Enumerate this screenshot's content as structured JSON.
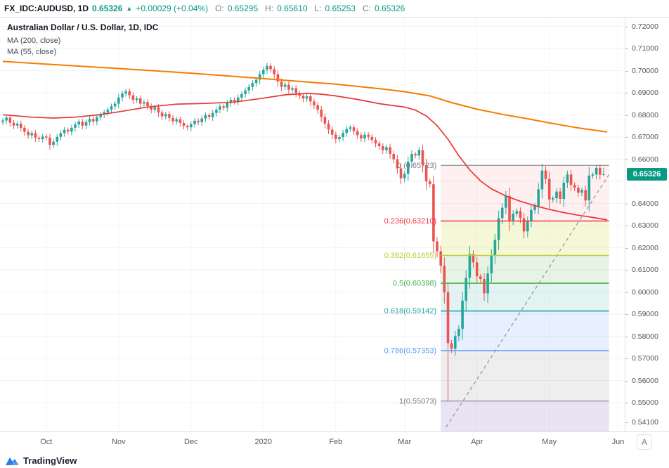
{
  "topbar": {
    "symbol": "FX_IDC:AUDUSD, 1D",
    "last": "0.65326",
    "direction_icon": "▲",
    "change": "+0.00029 (+0.04%)",
    "o_label": "O:",
    "o": "0.65295",
    "h_label": "H:",
    "h": "0.65610",
    "l_label": "L:",
    "l": "0.65253",
    "c_label": "C:",
    "c": "0.65326"
  },
  "legend": {
    "title": "Australian Dollar / U.S. Dollar, 1D, IDC",
    "ma1": "MA (200, close)",
    "ma2": "MA (55, close)"
  },
  "price_badge": "0.65326",
  "corner_button": "A",
  "footer": {
    "brand": "TradingView"
  },
  "colors": {
    "up": "#26a69a",
    "down": "#ef5350",
    "accent_teal": "#089981",
    "brand_blue": "#2a7de1",
    "axis_text": "#51555f"
  },
  "axis": {
    "price_labels": [
      "0.72000",
      "0.71000",
      "0.70000",
      "0.69000",
      "0.68000",
      "0.67000",
      "0.66000",
      "0.64000",
      "0.63000",
      "0.62000",
      "0.61000",
      "0.60000",
      "0.59000",
      "0.58000",
      "0.57000",
      "0.56000",
      "0.55000",
      "0.54100"
    ],
    "month_labels": [
      {
        "text": "Oct",
        "i": 12
      },
      {
        "text": "Nov",
        "i": 32
      },
      {
        "text": "Dec",
        "i": 52
      },
      {
        "text": "2020",
        "i": 72
      },
      {
        "text": "Feb",
        "i": 92
      },
      {
        "text": "Mar",
        "i": 111
      },
      {
        "text": "Apr",
        "i": 131
      },
      {
        "text": "May",
        "i": 151
      },
      {
        "text": "Jun",
        "i": 170
      }
    ]
  },
  "chart_data": {
    "type": "candlestick",
    "title": "Australian Dollar / U.S. Dollar, 1D, IDC",
    "timeframe": "1D",
    "y_axis": {
      "visible_range": [
        0.537,
        0.724
      ],
      "grid": true
    },
    "candle_colors": {
      "up": "#26a69a",
      "down": "#ef5350"
    },
    "candles": {
      "first_open": 0.6768,
      "closes": [
        0.6775,
        0.6788,
        0.6765,
        0.6752,
        0.6761,
        0.6742,
        0.6724,
        0.6708,
        0.6718,
        0.6697,
        0.6691,
        0.6703,
        0.6698,
        0.6665,
        0.6679,
        0.6701,
        0.6718,
        0.6733,
        0.6725,
        0.6742,
        0.6757,
        0.677,
        0.6752,
        0.6768,
        0.6782,
        0.6771,
        0.679,
        0.6801,
        0.6812,
        0.6824,
        0.6839,
        0.6851,
        0.6879,
        0.6897,
        0.6907,
        0.6889,
        0.6868,
        0.6875,
        0.6851,
        0.6858,
        0.684,
        0.6824,
        0.6835,
        0.6811,
        0.6794,
        0.6804,
        0.6787,
        0.6771,
        0.6781,
        0.6764,
        0.6751,
        0.6744,
        0.6759,
        0.6774,
        0.6767,
        0.6784,
        0.6799,
        0.6791,
        0.6809,
        0.6824,
        0.6839,
        0.6833,
        0.6854,
        0.6869,
        0.6861,
        0.6879,
        0.6894,
        0.6911,
        0.6927,
        0.6944,
        0.6959,
        0.6984,
        0.7004,
        0.7022,
        0.7007,
        0.6984,
        0.6951,
        0.6927,
        0.6937,
        0.6914,
        0.6921,
        0.6899,
        0.6887,
        0.6874,
        0.6884,
        0.6861,
        0.6844,
        0.6824,
        0.6791,
        0.6761,
        0.6734,
        0.6711,
        0.6691,
        0.67,
        0.6719,
        0.6737,
        0.6744,
        0.6727,
        0.6709,
        0.6694,
        0.6711,
        0.6701,
        0.6687,
        0.6671,
        0.6659,
        0.6641,
        0.6654,
        0.6624,
        0.66,
        0.6559,
        0.6514,
        0.6534,
        0.6589,
        0.6624,
        0.6617,
        0.6641,
        0.6574,
        0.65,
        0.6487,
        0.6229,
        0.6184,
        0.6119,
        0.5999,
        0.5769,
        0.5744,
        0.5801,
        0.5834,
        0.5961,
        0.6064,
        0.6171,
        0.6134,
        0.6071,
        0.6059,
        0.5994,
        0.6084,
        0.6164,
        0.6236,
        0.6334,
        0.6381,
        0.6434,
        0.6324,
        0.6354,
        0.6366,
        0.6334,
        0.6274,
        0.6321,
        0.6371,
        0.6389,
        0.6464,
        0.6549,
        0.6511,
        0.6418,
        0.6424,
        0.6454,
        0.6421,
        0.6494,
        0.6531,
        0.6484,
        0.6471,
        0.6449,
        0.6461,
        0.6414,
        0.6526,
        0.6531,
        0.6561,
        0.653,
        0.65326
      ],
      "overrides": {
        "73": {
          "h": 0.7035
        },
        "123": {
          "l": 0.55073
        },
        "164": {
          "h": 0.65723
        },
        "166": {
          "o": 0.65295,
          "h": 0.6561,
          "l": 0.65253,
          "c": 0.65326
        }
      }
    },
    "moving_averages": [
      {
        "label": "MA (200, close)",
        "color": "#f57c00",
        "points": [
          [
            0,
            0.7042
          ],
          [
            12,
            0.703
          ],
          [
            32,
            0.701
          ],
          [
            52,
            0.6989
          ],
          [
            72,
            0.6964
          ],
          [
            92,
            0.6939
          ],
          [
            105,
            0.6917
          ],
          [
            111,
            0.6905
          ],
          [
            118,
            0.6886
          ],
          [
            124,
            0.6856
          ],
          [
            131,
            0.6826
          ],
          [
            138,
            0.6803
          ],
          [
            145,
            0.6783
          ],
          [
            151,
            0.6764
          ],
          [
            158,
            0.6744
          ],
          [
            167,
            0.6723
          ]
        ]
      },
      {
        "label": "MA (55, close)",
        "color": "#e53935",
        "points": [
          [
            0,
            0.6801
          ],
          [
            8,
            0.679
          ],
          [
            14,
            0.6786
          ],
          [
            20,
            0.679
          ],
          [
            26,
            0.68
          ],
          [
            32,
            0.6814
          ],
          [
            40,
            0.6836
          ],
          [
            48,
            0.6849
          ],
          [
            56,
            0.6852
          ],
          [
            64,
            0.6858
          ],
          [
            72,
            0.6876
          ],
          [
            78,
            0.6891
          ],
          [
            84,
            0.6897
          ],
          [
            88,
            0.6894
          ],
          [
            92,
            0.6886
          ],
          [
            98,
            0.687
          ],
          [
            104,
            0.6851
          ],
          [
            108,
            0.6842
          ],
          [
            111,
            0.6836
          ],
          [
            114,
            0.6822
          ],
          [
            117,
            0.6796
          ],
          [
            120,
            0.6752
          ],
          [
            123,
            0.669
          ],
          [
            126,
            0.6616
          ],
          [
            129,
            0.6552
          ],
          [
            132,
            0.6502
          ],
          [
            135,
            0.6466
          ],
          [
            139,
            0.6434
          ],
          [
            143,
            0.641
          ],
          [
            147,
            0.639
          ],
          [
            151,
            0.6373
          ],
          [
            155,
            0.6359
          ],
          [
            159,
            0.6347
          ],
          [
            163,
            0.6337
          ],
          [
            167,
            0.6326
          ]
        ]
      }
    ],
    "fibonacci": {
      "start_index": 121,
      "end_index": 167.5,
      "levels": [
        {
          "label": "0 (0.65723)",
          "value": 0.65723,
          "color": "#787b86"
        },
        {
          "label": "0.236(0.63210)",
          "value": 0.6321,
          "color": "#f23645"
        },
        {
          "label": "0.382(0.61655)",
          "value": 0.61655,
          "color": "#c0ca33"
        },
        {
          "label": "0.5(0.60398)",
          "value": 0.60398,
          "color": "#4caf50"
        },
        {
          "label": "0.618(0.59142)",
          "value": 0.59142,
          "color": "#26a69a"
        },
        {
          "label": "0.786(0.57353)",
          "value": 0.57353,
          "color": "#5b9cf6"
        },
        {
          "label": "1(0.55073)",
          "value": 0.55073,
          "color": "#787b86"
        }
      ],
      "bands": [
        {
          "top": 0.65723,
          "bottom": 0.6321,
          "fill": "rgba(242,54,69,0.08)"
        },
        {
          "top": 0.6321,
          "bottom": 0.61655,
          "fill": "rgba(205,220,57,0.20)"
        },
        {
          "top": 0.61655,
          "bottom": 0.60398,
          "fill": "rgba(76,175,80,0.14)"
        },
        {
          "top": 0.60398,
          "bottom": 0.59142,
          "fill": "rgba(38,166,154,0.13)"
        },
        {
          "top": 0.59142,
          "bottom": 0.57353,
          "fill": "rgba(91,156,246,0.15)"
        },
        {
          "top": 0.57353,
          "bottom": 0.55073,
          "fill": "rgba(120,123,134,0.13)"
        },
        {
          "top": 0.55073,
          "bottom": 0.537,
          "fill": "rgba(103,58,183,0.14)"
        }
      ],
      "trend_line": {
        "from_index": 122.5,
        "from_price": 0.539,
        "to_index": 167.5,
        "to_price": 0.653
      }
    }
  }
}
